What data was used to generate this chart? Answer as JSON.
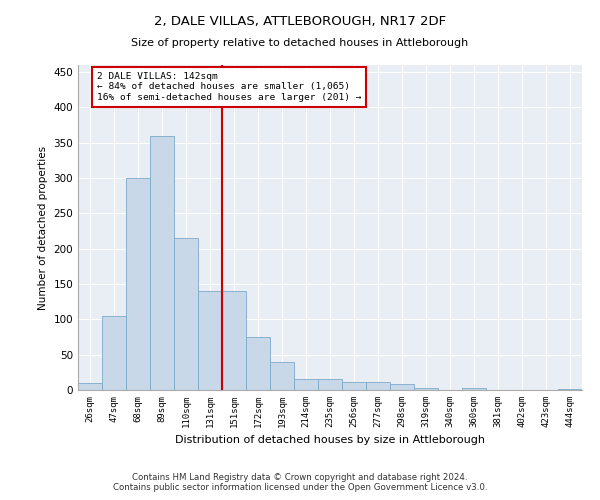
{
  "title": "2, DALE VILLAS, ATTLEBOROUGH, NR17 2DF",
  "subtitle": "Size of property relative to detached houses in Attleborough",
  "xlabel": "Distribution of detached houses by size in Attleborough",
  "ylabel": "Number of detached properties",
  "footer_line1": "Contains HM Land Registry data © Crown copyright and database right 2024.",
  "footer_line2": "Contains public sector information licensed under the Open Government Licence v3.0.",
  "bar_color": "#c8d8e8",
  "bar_edge_color": "#7aaac8",
  "background_color": "#e8eef4",
  "vline_color": "#cc0000",
  "vline_x": 5.5,
  "annotation_box_color": "#cc0000",
  "annotation_line1": "2 DALE VILLAS: 142sqm",
  "annotation_line2": "← 84% of detached houses are smaller (1,065)",
  "annotation_line3": "16% of semi-detached houses are larger (201) →",
  "categories": [
    "26sqm",
    "47sqm",
    "68sqm",
    "89sqm",
    "110sqm",
    "131sqm",
    "151sqm",
    "172sqm",
    "193sqm",
    "214sqm",
    "235sqm",
    "256sqm",
    "277sqm",
    "298sqm",
    "319sqm",
    "340sqm",
    "360sqm",
    "381sqm",
    "402sqm",
    "423sqm",
    "444sqm"
  ],
  "values": [
    10,
    105,
    300,
    360,
    215,
    140,
    140,
    75,
    40,
    15,
    15,
    12,
    12,
    8,
    3,
    0,
    3,
    0,
    0,
    0,
    2
  ],
  "ylim": [
    0,
    460
  ],
  "yticks": [
    0,
    50,
    100,
    150,
    200,
    250,
    300,
    350,
    400,
    450
  ]
}
